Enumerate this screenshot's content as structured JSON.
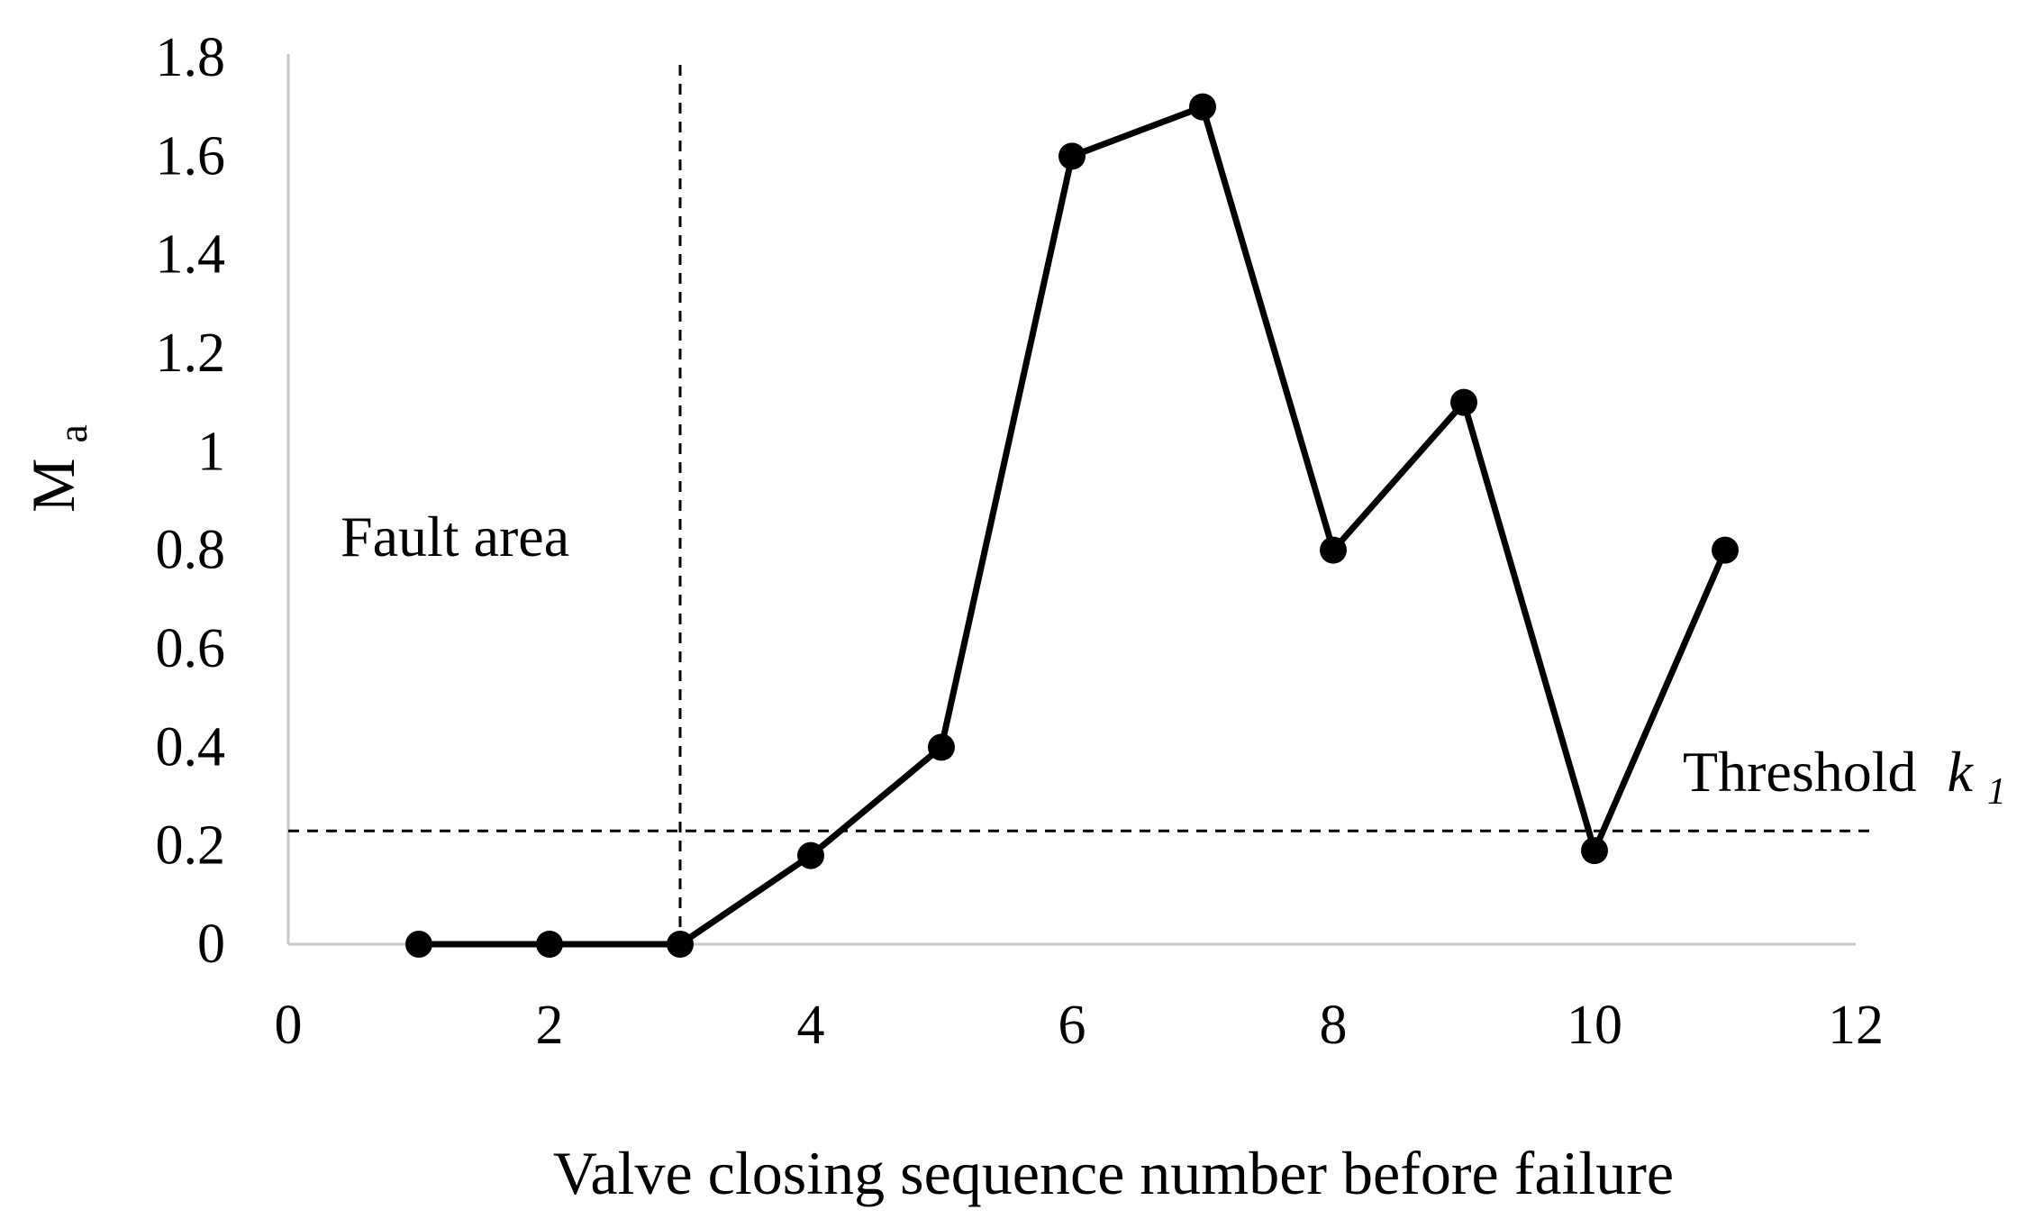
{
  "chart_data": {
    "type": "line",
    "xlabel": "Valve closing sequence number before failure",
    "ylabel": "M",
    "ylabel_subscript": "a",
    "xlim": [
      0,
      12
    ],
    "ylim": [
      0,
      1.8
    ],
    "x_ticks": [
      "0",
      "2",
      "4",
      "6",
      "8",
      "10",
      "12"
    ],
    "y_ticks": [
      "0",
      "0.2",
      "0.4",
      "0.6",
      "0.8",
      "1",
      "1.2",
      "1.4",
      "1.6",
      "1.8"
    ],
    "grid": false,
    "legend": "none",
    "series": [
      {
        "x": [
          1,
          2,
          3,
          4,
          5,
          6,
          7,
          8,
          9,
          10,
          11
        ],
        "y": [
          0,
          0,
          0,
          0.18,
          0.4,
          1.6,
          1.7,
          0.8,
          1.1,
          0.19,
          0.8
        ],
        "color": "#000000",
        "marker": "circle",
        "connected_through_x": 10
      }
    ],
    "reference_lines": [
      {
        "orientation": "vertical",
        "x": 3,
        "style": "dashed"
      },
      {
        "orientation": "horizontal",
        "y": 0.23,
        "style": "dashed"
      }
    ],
    "annotations": {
      "fault_area": "Fault area",
      "threshold_label": "Threshold",
      "threshold_symbol": "k",
      "threshold_subscript": "1"
    }
  }
}
